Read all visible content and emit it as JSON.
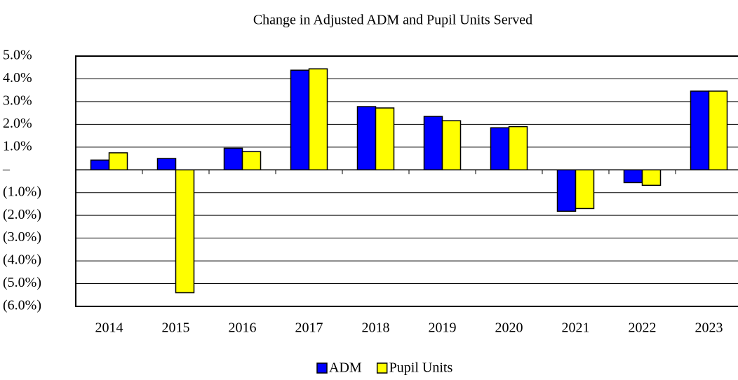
{
  "chart_data": {
    "type": "bar",
    "title": "Change in  Adjusted ADM and Pupil Units Served",
    "categories": [
      "2014",
      "2015",
      "2016",
      "2017",
      "2018",
      "2019",
      "2020",
      "2021",
      "2022",
      "2023"
    ],
    "series": [
      {
        "name": "ADM",
        "color": "#0000ff",
        "values": [
          0.43,
          0.5,
          0.95,
          4.38,
          2.78,
          2.35,
          1.85,
          -1.82,
          -0.56,
          3.46
        ]
      },
      {
        "name": "Pupil Units",
        "color": "#ffff00",
        "values": [
          0.75,
          -5.4,
          0.8,
          4.44,
          2.72,
          2.16,
          1.9,
          -1.7,
          -0.68,
          3.46
        ]
      }
    ],
    "ylim": [
      -6,
      5
    ],
    "yticks": [
      {
        "value": 5,
        "label": "5.0%"
      },
      {
        "value": 4,
        "label": "4.0%"
      },
      {
        "value": 3,
        "label": "3.0%"
      },
      {
        "value": 2,
        "label": "2.0%"
      },
      {
        "value": 1,
        "label": "1.0%"
      },
      {
        "value": 0,
        "label": "–"
      },
      {
        "value": -1,
        "label": "(1.0%)"
      },
      {
        "value": -2,
        "label": "(2.0%)"
      },
      {
        "value": -3,
        "label": "(3.0%)"
      },
      {
        "value": -4,
        "label": "(4.0%)"
      },
      {
        "value": -5,
        "label": "(5.0%)"
      },
      {
        "value": -6,
        "label": "(6.0%)"
      }
    ],
    "grid": true,
    "legend": "bottom"
  }
}
